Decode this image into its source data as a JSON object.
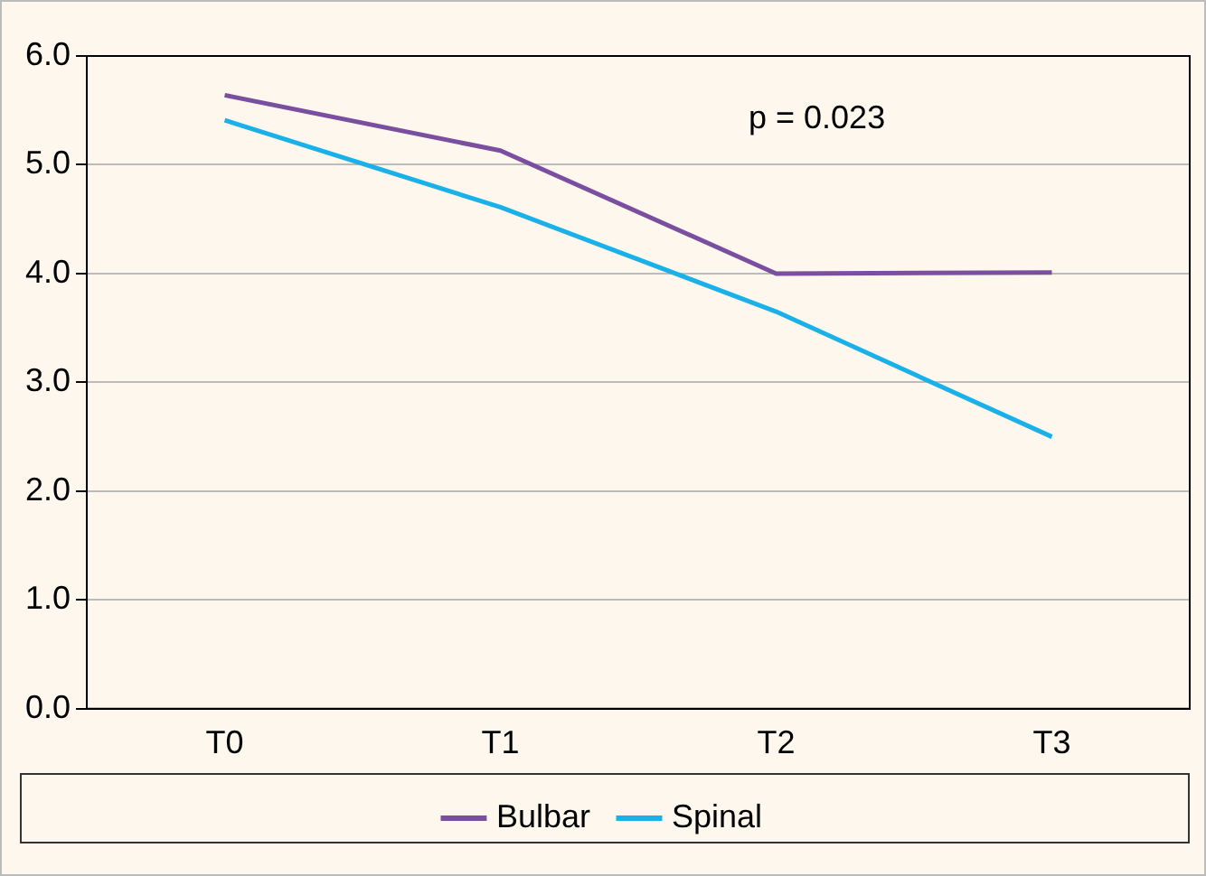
{
  "chart_data": {
    "type": "line",
    "categories": [
      "T0",
      "T1",
      "T2",
      "T3"
    ],
    "series": [
      {
        "name": "Bulbar",
        "color": "#7b4fa0",
        "values": [
          5.64,
          5.13,
          4.0,
          4.01
        ]
      },
      {
        "name": "Spinal",
        "color": "#1ab0e8",
        "values": [
          5.41,
          4.61,
          3.65,
          2.5
        ]
      }
    ],
    "ylim": [
      0,
      6
    ],
    "yticks": [
      {
        "value": 0,
        "label": "0.0"
      },
      {
        "value": 1,
        "label": "1.0"
      },
      {
        "value": 2,
        "label": "2.0"
      },
      {
        "value": 3,
        "label": "3.0"
      },
      {
        "value": 4,
        "label": "4.0"
      },
      {
        "value": 5,
        "label": "5.0"
      },
      {
        "value": 6,
        "label": "6.0"
      }
    ],
    "grid": "y",
    "legend": "bottom",
    "marker": "none",
    "line_style": "solid",
    "annotations": [
      "p = 0.023"
    ]
  }
}
